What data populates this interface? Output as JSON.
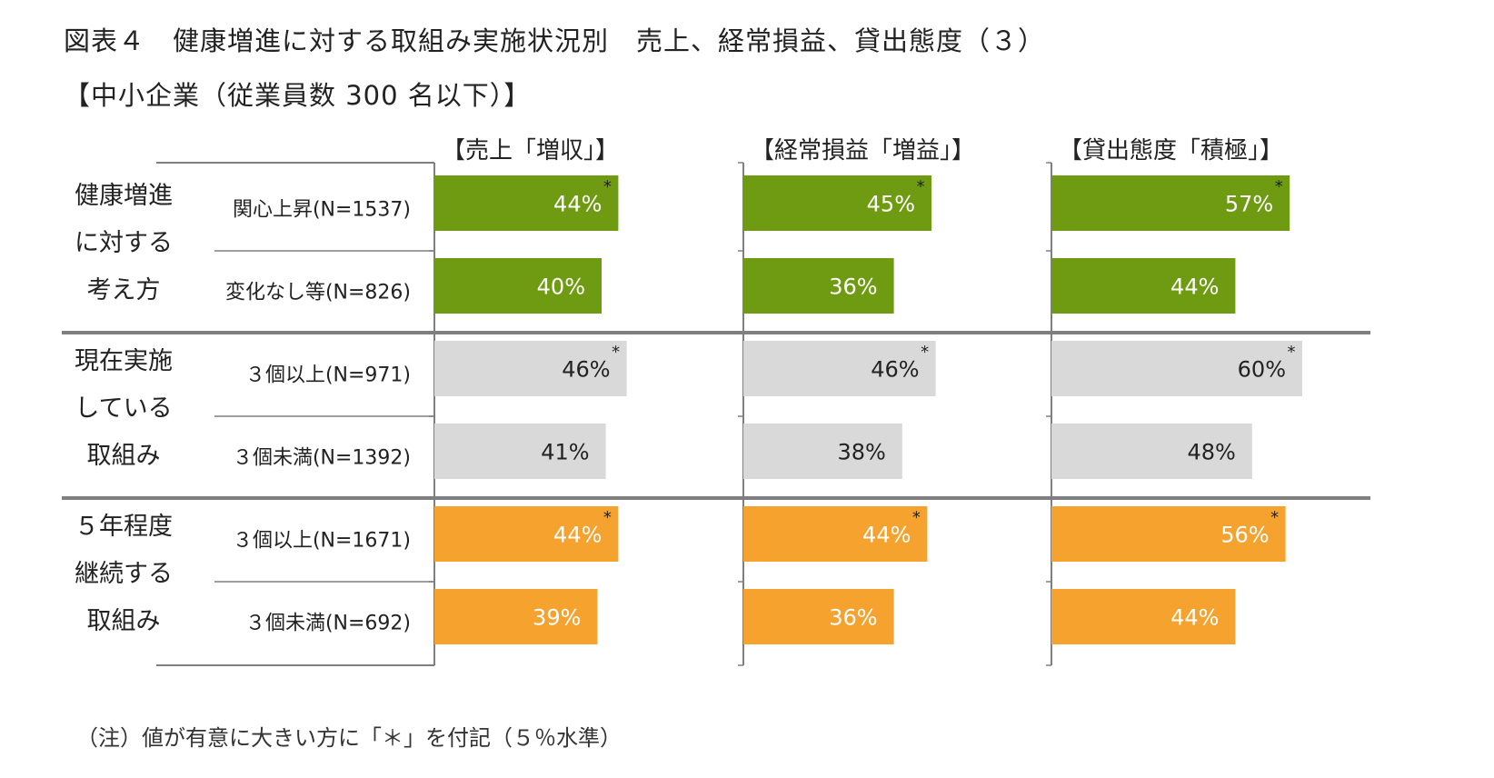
{
  "title": "図表４　健康増進に対する取組み実施状況別　売上、経常損益、貸出態度（３）",
  "subtitle": "【中小企業（従業員数 300 名以下）】",
  "note": "（注）値が有意に大きい方に「＊」を付記（５％水準）",
  "colors": {
    "green": "#6e9b11",
    "gray": "#d9d9d9",
    "orange": "#f5a22f",
    "axis": "#7f7f7f"
  },
  "chart_data": {
    "type": "bar",
    "orientation": "horizontal",
    "unit": "%",
    "significance_marker": "*",
    "panels": [
      "【売上「増収」】",
      "【経常損益「増益」】",
      "【貸出態度「積極」】"
    ],
    "groups": [
      {
        "label_lines": [
          "健康増進",
          "に対する",
          "考え方"
        ],
        "color": "green",
        "categories": [
          "関心上昇(N=1537)",
          "変化なし等(N=826)"
        ]
      },
      {
        "label_lines": [
          "現在実施",
          "している",
          "取組み"
        ],
        "color": "gray",
        "categories": [
          "３個以上(N=971)",
          "３個未満(N=1392)"
        ]
      },
      {
        "label_lines": [
          "５年程度",
          "継続する",
          "取組み"
        ],
        "color": "orange",
        "categories": [
          "３個以上(N=1671)",
          "３個未満(N=692)"
        ]
      }
    ],
    "series": [
      {
        "name": "【売上「増収」】",
        "values": [
          44,
          40,
          46,
          41,
          44,
          39
        ],
        "labels": [
          "44%",
          "40%",
          "46%",
          "41%",
          "44%",
          "39%"
        ],
        "significant": [
          true,
          false,
          true,
          false,
          true,
          false
        ]
      },
      {
        "name": "【経常損益「増益」】",
        "values": [
          45,
          36,
          46,
          38,
          44,
          36
        ],
        "labels": [
          "45%",
          "36%",
          "46%",
          "38%",
          "44%",
          "36%"
        ],
        "significant": [
          true,
          false,
          true,
          false,
          true,
          false
        ]
      },
      {
        "name": "【貸出態度「積極」】",
        "values": [
          57,
          44,
          60,
          48,
          56,
          44
        ],
        "labels": [
          "57%",
          "44%",
          "60%",
          "48%",
          "56%",
          "44%"
        ],
        "significant": [
          true,
          false,
          true,
          false,
          true,
          false
        ]
      }
    ]
  }
}
